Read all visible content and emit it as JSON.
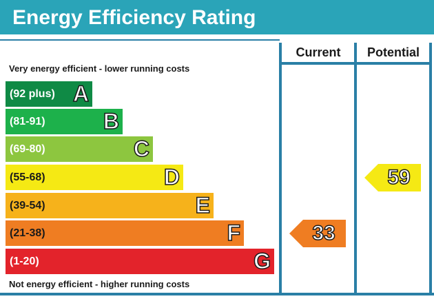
{
  "header": {
    "title": "Energy Efficiency Rating"
  },
  "columns": {
    "current": "Current",
    "potential": "Potential"
  },
  "captions": {
    "top": "Very energy efficient - lower running costs",
    "bottom": "Not energy efficient - higher running costs"
  },
  "chart_data": {
    "type": "bar",
    "title": "Energy Efficiency Rating",
    "categories": [
      "A",
      "B",
      "C",
      "D",
      "E",
      "F",
      "G"
    ],
    "bands": [
      {
        "letter": "A",
        "range": "(92 plus)",
        "color": "#0f8a45"
      },
      {
        "letter": "B",
        "range": "(81-91)",
        "color": "#1db14b"
      },
      {
        "letter": "C",
        "range": "(69-80)",
        "color": "#8dc63f"
      },
      {
        "letter": "D",
        "range": "(55-68)",
        "color": "#f5e914"
      },
      {
        "letter": "E",
        "range": "(39-54)",
        "color": "#f6b21b"
      },
      {
        "letter": "F",
        "range": "(21-38)",
        "color": "#ef7d22"
      },
      {
        "letter": "G",
        "range": "(1-20)",
        "color": "#e3232b"
      }
    ],
    "current": {
      "value": 33,
      "band": "F",
      "color": "#ef7d22"
    },
    "potential": {
      "value": 59,
      "band": "D",
      "color": "#f5e914"
    }
  },
  "colors": {
    "title_bar": "#2aa4b8",
    "frame": "#2a7fa6"
  }
}
